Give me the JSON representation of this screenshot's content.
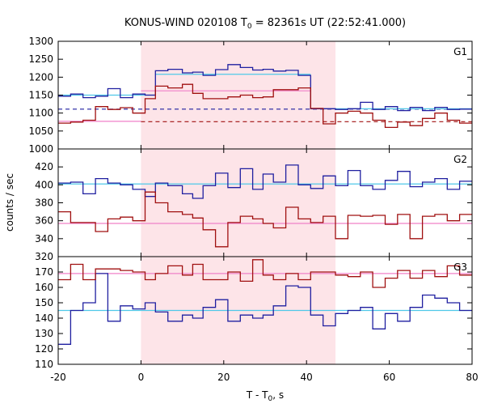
{
  "chart_data": {
    "type": "line",
    "title": "KONUS-WIND 020108 T",
    "title_sub": "0",
    "title_rest": " = 82361s UT (22:52:41.000)",
    "xlabel": "T - T",
    "xlabel_sub": "0",
    "xlabel_rest": ", s",
    "ylabel": "counts / sec",
    "xlim": [
      -20,
      80
    ],
    "x_ticks": [
      -20,
      0,
      20,
      40,
      60,
      80
    ],
    "highlight_interval": [
      0,
      47
    ],
    "colors": {
      "blue": "#1f1fa0",
      "red": "#a01010",
      "cyan": "#4fc8e8",
      "pink": "#f080c8",
      "highlight": "#fde4e8"
    },
    "panels": [
      {
        "label": "G1",
        "ylim": [
          1000,
          1300
        ],
        "y_ticks": [
          1000,
          1050,
          1100,
          1150,
          1200,
          1250,
          1300
        ],
        "series": [
          {
            "color": "blue",
            "edges": [
              -20,
              -17,
              -14,
              -11,
              -8,
              -5,
              -2,
              1,
              3.5,
              6.5,
              10,
              12.5,
              15,
              18,
              21,
              24,
              27,
              29.5,
              32,
              35,
              38,
              41,
              44,
              47,
              50,
              53,
              56,
              59,
              62,
              65,
              68,
              71,
              74,
              77,
              80
            ],
            "values": [
              1147,
              1153,
              1143,
              1147,
              1168,
              1143,
              1153,
              1150,
              1218,
              1222,
              1212,
              1214,
              1205,
              1221,
              1235,
              1227,
              1220,
              1222,
              1217,
              1219,
              1205,
              1112,
              1112,
              1110,
              1112,
              1130,
              1110,
              1118,
              1107,
              1116,
              1107,
              1116,
              1110,
              1111
            ]
          },
          {
            "color": "red",
            "edges": [
              -20,
              -17,
              -14,
              -11,
              -8,
              -5,
              -2,
              1,
              3.5,
              6.5,
              10,
              12.5,
              15,
              18,
              21,
              24,
              27,
              29.5,
              32,
              35,
              38,
              41,
              44,
              47,
              50,
              53,
              56,
              59,
              62,
              65,
              68,
              71,
              74,
              77,
              80
            ],
            "values": [
              1072,
              1075,
              1080,
              1118,
              1110,
              1115,
              1100,
              1140,
              1175,
              1170,
              1180,
              1155,
              1140,
              1140,
              1145,
              1150,
              1143,
              1145,
              1165,
              1165,
              1170,
              1113,
              1070,
              1100,
              1105,
              1100,
              1080,
              1060,
              1075,
              1065,
              1085,
              1100,
              1080,
              1072
            ]
          }
        ],
        "levels": [
          {
            "color": "blue",
            "style": "dashed",
            "segments": [
              {
                "x": [
                  -20,
                  80
                ],
                "y": 1111
              }
            ]
          },
          {
            "color": "red",
            "style": "dashed",
            "segments": [
              {
                "x": [
                  0,
                  80
                ],
                "y": 1076
              }
            ]
          },
          {
            "color": "pink",
            "style": "solid",
            "segments": [
              {
                "x": [
                  -20,
                  0
                ],
                "y": 1077
              },
              {
                "x": [
                  0,
                  41
                ],
                "y": 1162
              }
            ]
          },
          {
            "color": "cyan",
            "style": "solid",
            "segments": [
              {
                "x": [
                  3.5,
                  41
                ],
                "y": 1208
              },
              {
                "x": [
                  41,
                  80
                ],
                "y": 1112
              }
            ]
          },
          {
            "color": "cyan",
            "style": "solid",
            "segments": [
              {
                "x": [
                  -20,
                  3.5
                ],
                "y": 1150
              }
            ]
          }
        ]
      },
      {
        "label": "G2",
        "ylim": [
          320,
          440
        ],
        "y_ticks": [
          320,
          340,
          360,
          380,
          400,
          420
        ],
        "series": [
          {
            "color": "blue",
            "edges": [
              -20,
              -17,
              -14,
              -11,
              -8,
              -5,
              -2,
              1,
              3.5,
              6.5,
              10,
              12.5,
              15,
              18,
              21,
              24,
              27,
              29.5,
              32,
              35,
              38,
              41,
              44,
              47,
              50,
              53,
              56,
              59,
              62,
              65,
              68,
              71,
              74,
              77,
              80
            ],
            "values": [
              402,
              403,
              390,
              407,
              402,
              400,
              395,
              387,
              402,
              399,
              390,
              385,
              399,
              413,
              397,
              418,
              395,
              412,
              403,
              422,
              400,
              396,
              410,
              399,
              416,
              399,
              395,
              405,
              415,
              398,
              403,
              407,
              395,
              404
            ]
          },
          {
            "color": "red",
            "edges": [
              -20,
              -17,
              -14,
              -11,
              -8,
              -5,
              -2,
              1,
              3.5,
              6.5,
              10,
              12.5,
              15,
              18,
              21,
              24,
              27,
              29.5,
              32,
              35,
              38,
              41,
              44,
              47,
              50,
              53,
              56,
              59,
              62,
              65,
              68,
              71,
              74,
              77,
              80
            ],
            "values": [
              370,
              358,
              358,
              348,
              362,
              364,
              360,
              392,
              380,
              370,
              367,
              363,
              350,
              331,
              358,
              365,
              362,
              357,
              352,
              375,
              362,
              358,
              365,
              340,
              366,
              365,
              366,
              356,
              367,
              340,
              365,
              367,
              360,
              367
            ]
          }
        ],
        "levels": [
          {
            "color": "cyan",
            "style": "solid",
            "segments": [
              {
                "x": [
                  -20,
                  80
                ],
                "y": 401
              }
            ]
          },
          {
            "color": "pink",
            "style": "solid",
            "segments": [
              {
                "x": [
                  -20,
                  80
                ],
                "y": 357
              }
            ]
          }
        ]
      },
      {
        "label": "G3",
        "ylim": [
          110,
          180
        ],
        "y_ticks": [
          110,
          120,
          130,
          140,
          150,
          160,
          170
        ],
        "series": [
          {
            "color": "blue",
            "edges": [
              -20,
              -17,
              -14,
              -11,
              -8,
              -5,
              -2,
              1,
              3.5,
              6.5,
              10,
              12.5,
              15,
              18,
              21,
              24,
              27,
              29.5,
              32,
              35,
              38,
              41,
              44,
              47,
              50,
              53,
              56,
              59,
              62,
              65,
              68,
              71,
              74,
              77,
              80
            ],
            "values": [
              123,
              145,
              150,
              169,
              138,
              148,
              146,
              150,
              144,
              138,
              142,
              140,
              147,
              152,
              138,
              142,
              140,
              142,
              148,
              161,
              160,
              142,
              135,
              143,
              145,
              147,
              133,
              143,
              138,
              147,
              155,
              153,
              150,
              145
            ]
          },
          {
            "color": "red",
            "edges": [
              -20,
              -17,
              -14,
              -11,
              -8,
              -5,
              -2,
              1,
              3.5,
              6.5,
              10,
              12.5,
              15,
              18,
              21,
              24,
              27,
              29.5,
              32,
              35,
              38,
              41,
              44,
              47,
              50,
              53,
              56,
              59,
              62,
              65,
              68,
              71,
              74,
              77,
              80
            ],
            "values": [
              165,
              175,
              165,
              172,
              172,
              171,
              170,
              165,
              169,
              174,
              168,
              175,
              165,
              165,
              170,
              164,
              178,
              168,
              165,
              169,
              165,
              170,
              170,
              168,
              167,
              170,
              160,
              166,
              171,
              166,
              171,
              167,
              174,
              168
            ]
          }
        ],
        "levels": [
          {
            "color": "cyan",
            "style": "solid",
            "segments": [
              {
                "x": [
                  -20,
                  80
                ],
                "y": 145
              }
            ]
          },
          {
            "color": "pink",
            "style": "solid",
            "segments": [
              {
                "x": [
                  -20,
                  80
                ],
                "y": 169
              }
            ]
          }
        ]
      }
    ]
  }
}
